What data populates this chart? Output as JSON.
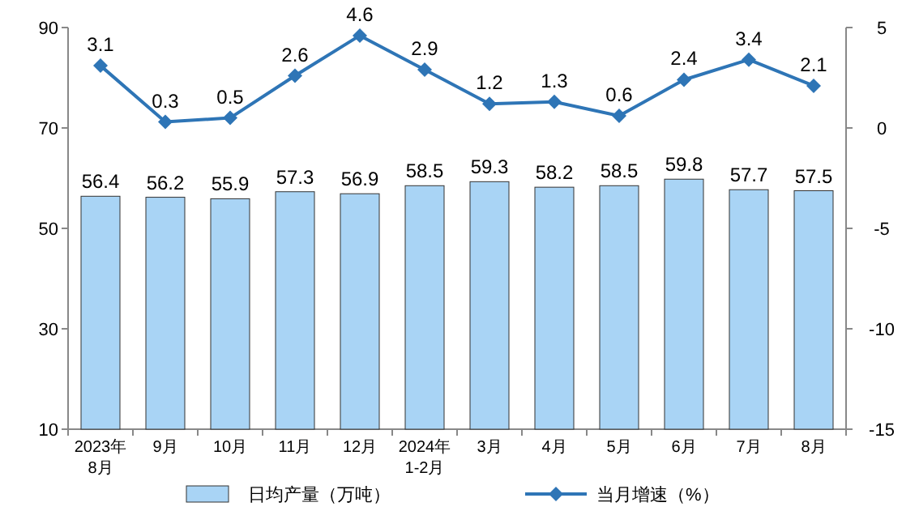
{
  "chart_data": {
    "type": "bar",
    "categories": [
      "2023年\n8月",
      "9月",
      "10月",
      "11月",
      "12月",
      "2024年\n1-2月",
      "3月",
      "4月",
      "5月",
      "6月",
      "7月",
      "8月"
    ],
    "series": [
      {
        "name": "日均产量（万吨）",
        "color": "#a9d4f5",
        "values": [
          56.4,
          56.2,
          55.9,
          57.3,
          56.9,
          58.5,
          59.3,
          58.2,
          58.5,
          59.8,
          57.7,
          57.5
        ]
      },
      {
        "name": "当月增速（%）",
        "type": "line",
        "axis": "y2",
        "color": "#2e75b6",
        "marker": "diamond",
        "values": [
          3.1,
          0.3,
          0.5,
          2.6,
          4.6,
          2.9,
          1.2,
          1.3,
          0.6,
          2.4,
          3.4,
          2.1
        ]
      }
    ],
    "ylim": [
      10,
      90
    ],
    "yticks": [
      10,
      30,
      50,
      70,
      90
    ],
    "y2lim": [
      -15,
      5
    ],
    "y2ticks": [
      -15,
      -10,
      -5,
      0,
      5
    ],
    "data_labels": true,
    "legend": "bottom",
    "grid": false
  }
}
